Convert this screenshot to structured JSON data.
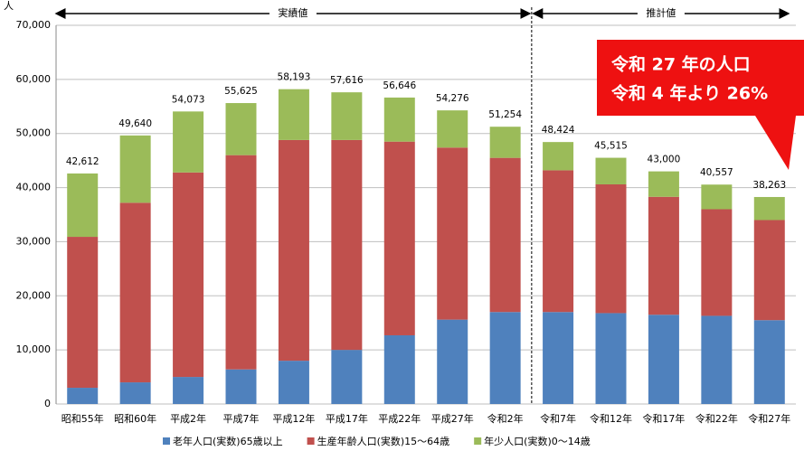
{
  "chart_data": {
    "type": "stacked-bar",
    "unit_label": "人",
    "period_labels": [
      "実績値",
      "推計値"
    ],
    "annotation": [
      "令和 27 年の人口",
      "令和 4 年より 26%"
    ],
    "categories": [
      "昭和55年",
      "昭和60年",
      "平成2年",
      "平成7年",
      "平成12年",
      "平成17年",
      "平成22年",
      "平成27年",
      "令和2年",
      "令和7年",
      "令和12年",
      "令和17年",
      "令和22年",
      "令和27年"
    ],
    "series": [
      {
        "name": "老年人口(実数)65歳以上",
        "color": "#4f81bd",
        "values": [
          3000,
          4000,
          5000,
          6400,
          8000,
          10000,
          12700,
          15600,
          17000,
          17000,
          16800,
          16500,
          16300,
          15500
        ]
      },
      {
        "name": "生産年齢人口(実数)15～64歳",
        "color": "#c0504d",
        "values": [
          27900,
          33200,
          37800,
          39600,
          40800,
          38800,
          35800,
          31800,
          28500,
          26200,
          23800,
          21800,
          19700,
          18500
        ]
      },
      {
        "name": "年少人口(実数)0～14歳",
        "color": "#9bbb59",
        "values": [
          11712,
          12440,
          11273,
          9625,
          9393,
          8816,
          8146,
          6876,
          5754,
          5224,
          4915,
          4700,
          4557,
          4263
        ]
      }
    ],
    "totals": [
      42612,
      49640,
      54073,
      55625,
      58193,
      57616,
      56646,
      54276,
      51254,
      48424,
      45515,
      43000,
      40557,
      38263
    ],
    "total_labels": [
      "42,612",
      "49,640",
      "54,073",
      "55,625",
      "58,193",
      "57,616",
      "56,646",
      "54,276",
      "51,254",
      "48,424",
      "45,515",
      "43,000",
      "40,557",
      "38,263"
    ],
    "ylim": [
      0,
      70000
    ],
    "yticks": [
      0,
      {
        "value": 10000,
        "label": "10,000"
      },
      {
        "value": 20000,
        "label": "20,000"
      },
      {
        "value": 30000,
        "label": "30,000"
      },
      {
        "value": 40000,
        "label": "40,000"
      },
      {
        "value": 50000,
        "label": "50,000"
      },
      {
        "value": 60000,
        "label": "60,000"
      },
      {
        "value": 70000,
        "label": "70,000"
      }
    ],
    "grid": true
  }
}
